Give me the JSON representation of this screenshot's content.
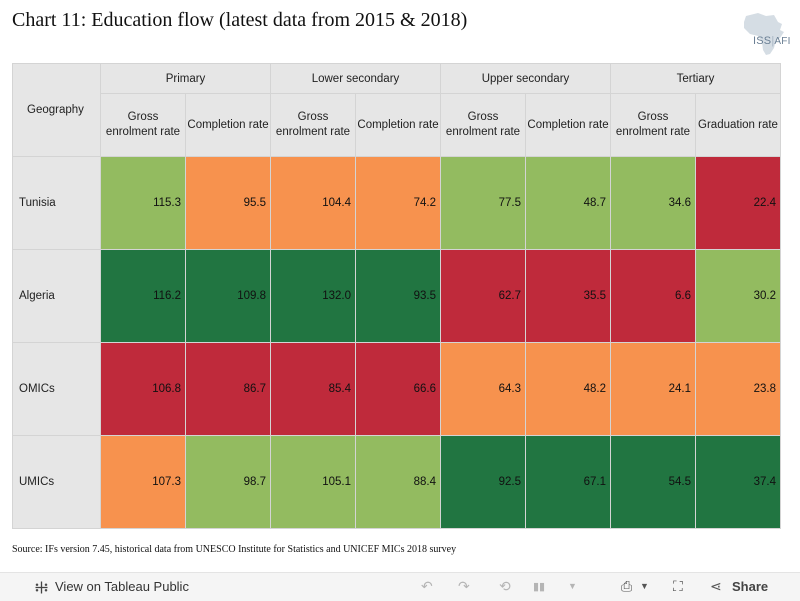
{
  "title": "Chart 11: Education flow (latest data from 2015 & 2018)",
  "logo": {
    "text_iss": "ISS",
    "text_afi": "AFI",
    "icon": "africa-map-icon"
  },
  "source": "Source: IFs version 7.45, historical data from UNESCO Institute for Statistics and UNICEF MICs 2018 survey",
  "colors": {
    "dark_green": "#217541",
    "light_green": "#93bb60",
    "orange": "#f7924e",
    "red": "#bf2a3b",
    "header_grey": "#e6e6e6"
  },
  "chart_data": {
    "type": "table",
    "row_header_label": "Geography",
    "groups": [
      "Primary",
      "Lower secondary",
      "Upper secondary",
      "Tertiary"
    ],
    "columns": [
      "Gross enrolment rate",
      "Completion rate",
      "Gross enrolment rate",
      "Completion rate",
      "Gross enrolment rate",
      "Completion rate",
      "Gross enrolment rate",
      "Graduation rate"
    ],
    "rows": [
      {
        "label": "Tunisia",
        "values": [
          "115.3",
          "95.5",
          "104.4",
          "74.2",
          "77.5",
          "48.7",
          "34.6",
          "22.4"
        ],
        "ranks": [
          3,
          2,
          2,
          2,
          3,
          3,
          3,
          1
        ]
      },
      {
        "label": "Algeria",
        "values": [
          "116.2",
          "109.8",
          "132.0",
          "93.5",
          "62.7",
          "35.5",
          "6.6",
          "30.2"
        ],
        "ranks": [
          4,
          4,
          4,
          4,
          1,
          1,
          1,
          3
        ]
      },
      {
        "label": "OMICs",
        "values": [
          "106.8",
          "86.7",
          "85.4",
          "66.6",
          "64.3",
          "48.2",
          "24.1",
          "23.8"
        ],
        "ranks": [
          1,
          1,
          1,
          1,
          2,
          2,
          2,
          2
        ]
      },
      {
        "label": "UMICs",
        "values": [
          "107.3",
          "98.7",
          "105.1",
          "88.4",
          "92.5",
          "67.1",
          "54.5",
          "37.4"
        ],
        "ranks": [
          2,
          3,
          3,
          3,
          4,
          4,
          4,
          4
        ]
      }
    ]
  },
  "toolbar": {
    "view_label": "View on Tableau Public",
    "share_label": "Share",
    "icons": [
      "tableau-logo-icon",
      "undo-icon",
      "redo-icon",
      "revert-icon",
      "pause-icon",
      "download-icon",
      "fullscreen-icon",
      "share-icon"
    ]
  }
}
